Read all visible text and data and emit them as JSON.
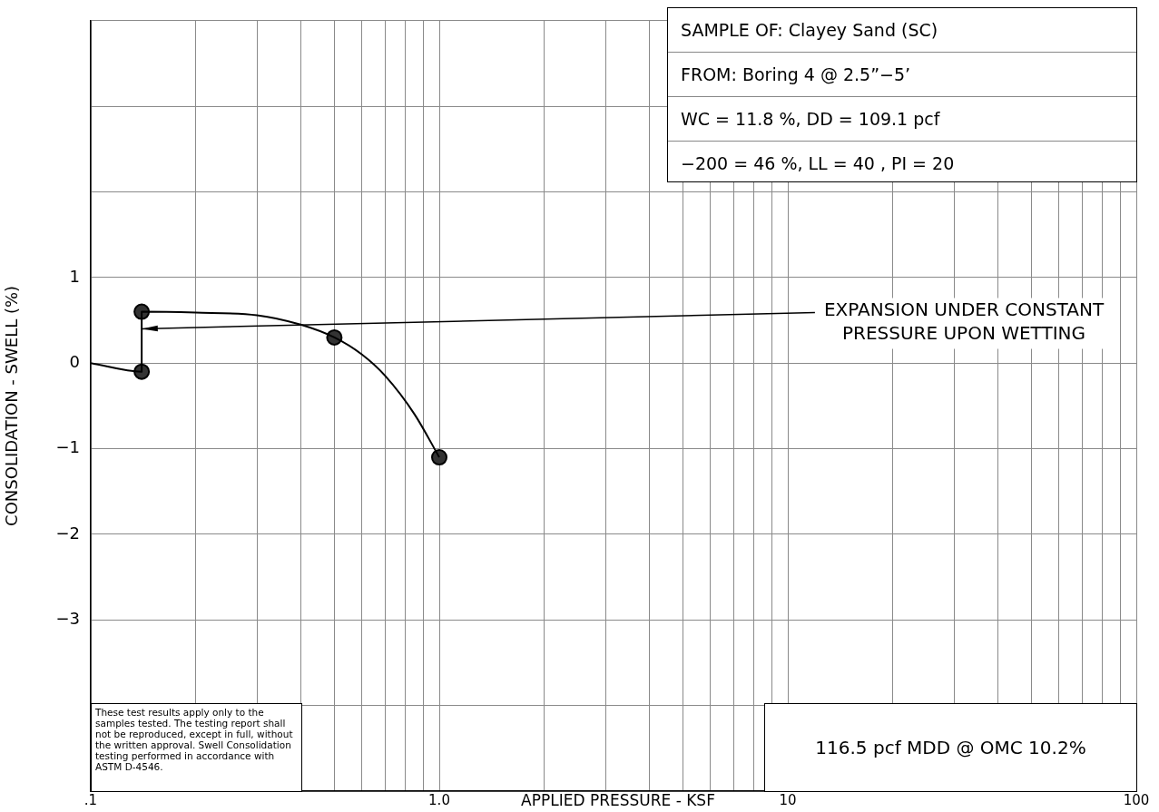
{
  "chart_data": {
    "type": "line",
    "xlabel": "APPLIED PRESSURE - KSF",
    "ylabel": "CONSOLIDATION - SWELL (%)",
    "log": "x",
    "grid": true,
    "legend": false,
    "xlim": [
      0.1,
      100
    ],
    "ylim": [
      -5,
      4
    ],
    "xticks": [
      {
        "value": 0.1,
        "label": ".1"
      },
      {
        "value": 0.2,
        "label": null
      },
      {
        "value": 0.3,
        "label": null
      },
      {
        "value": 0.4,
        "label": null
      },
      {
        "value": 0.5,
        "label": null
      },
      {
        "value": 0.6,
        "label": null
      },
      {
        "value": 0.7,
        "label": null
      },
      {
        "value": 0.8,
        "label": null
      },
      {
        "value": 0.9,
        "label": null
      },
      {
        "value": 1,
        "label": "1.0"
      },
      {
        "value": 2,
        "label": null
      },
      {
        "value": 3,
        "label": null
      },
      {
        "value": 4,
        "label": null
      },
      {
        "value": 5,
        "label": null
      },
      {
        "value": 6,
        "label": null
      },
      {
        "value": 7,
        "label": null
      },
      {
        "value": 8,
        "label": null
      },
      {
        "value": 9,
        "label": null
      },
      10,
      {
        "value": 20,
        "label": null
      },
      {
        "value": 30,
        "label": null
      },
      {
        "value": 40,
        "label": null
      },
      {
        "value": 50,
        "label": null
      },
      {
        "value": 60,
        "label": null
      },
      {
        "value": 70,
        "label": null
      },
      {
        "value": 80,
        "label": null
      },
      {
        "value": 90,
        "label": null
      },
      100
    ],
    "yticks": [
      {
        "value": -5,
        "label": null
      },
      {
        "value": -4,
        "label": null
      },
      {
        "value": -3,
        "label": "−3"
      },
      {
        "value": -2,
        "label": "−2"
      },
      {
        "value": -1,
        "label": "−1"
      },
      0,
      1,
      {
        "value": 2,
        "label": null
      },
      {
        "value": 3,
        "label": null
      },
      {
        "value": 4,
        "label": null
      }
    ],
    "series": [
      {
        "color": "#000000",
        "marker": "none",
        "x": [
          0.1,
          0.14,
          0.14,
          0.2,
          0.3,
          0.4,
          0.5,
          0.6,
          0.7,
          0.85,
          1.0
        ],
        "values": [
          0,
          -0.1,
          0.6,
          0.59,
          0.56,
          0.45,
          0.3,
          0.1,
          -0.15,
          -0.6,
          -1.1
        ]
      },
      {
        "type": "scatter",
        "color": "#333333",
        "marker": "circle",
        "x": [
          0.14,
          0.14,
          0.5,
          1.0
        ],
        "values": [
          -0.1,
          0.6,
          0.3,
          -1.1
        ]
      }
    ],
    "annotations": [
      "SAMPLE OF: Clayey Sand (SC)",
      "FROM: Boring 4 @ 2.5”−5’",
      "WC = 11.8 %, DD = 109.1 pcf",
      "−200 = 46 %,  LL = 40 ,  PI = 20",
      "These test results apply only to the samples tested. The testing report shall not be reproduced, except in full, without the written approval. Swell Consolidation testing performed in accordance with ASTM D-4546.",
      "116.5 pcf MDD @ OMC 10.2%",
      {
        "text": "EXPANSION UNDER CONSTANT PRESSURE UPON WETTING",
        "x": 0.14,
        "y": 0.4
      }
    ]
  }
}
